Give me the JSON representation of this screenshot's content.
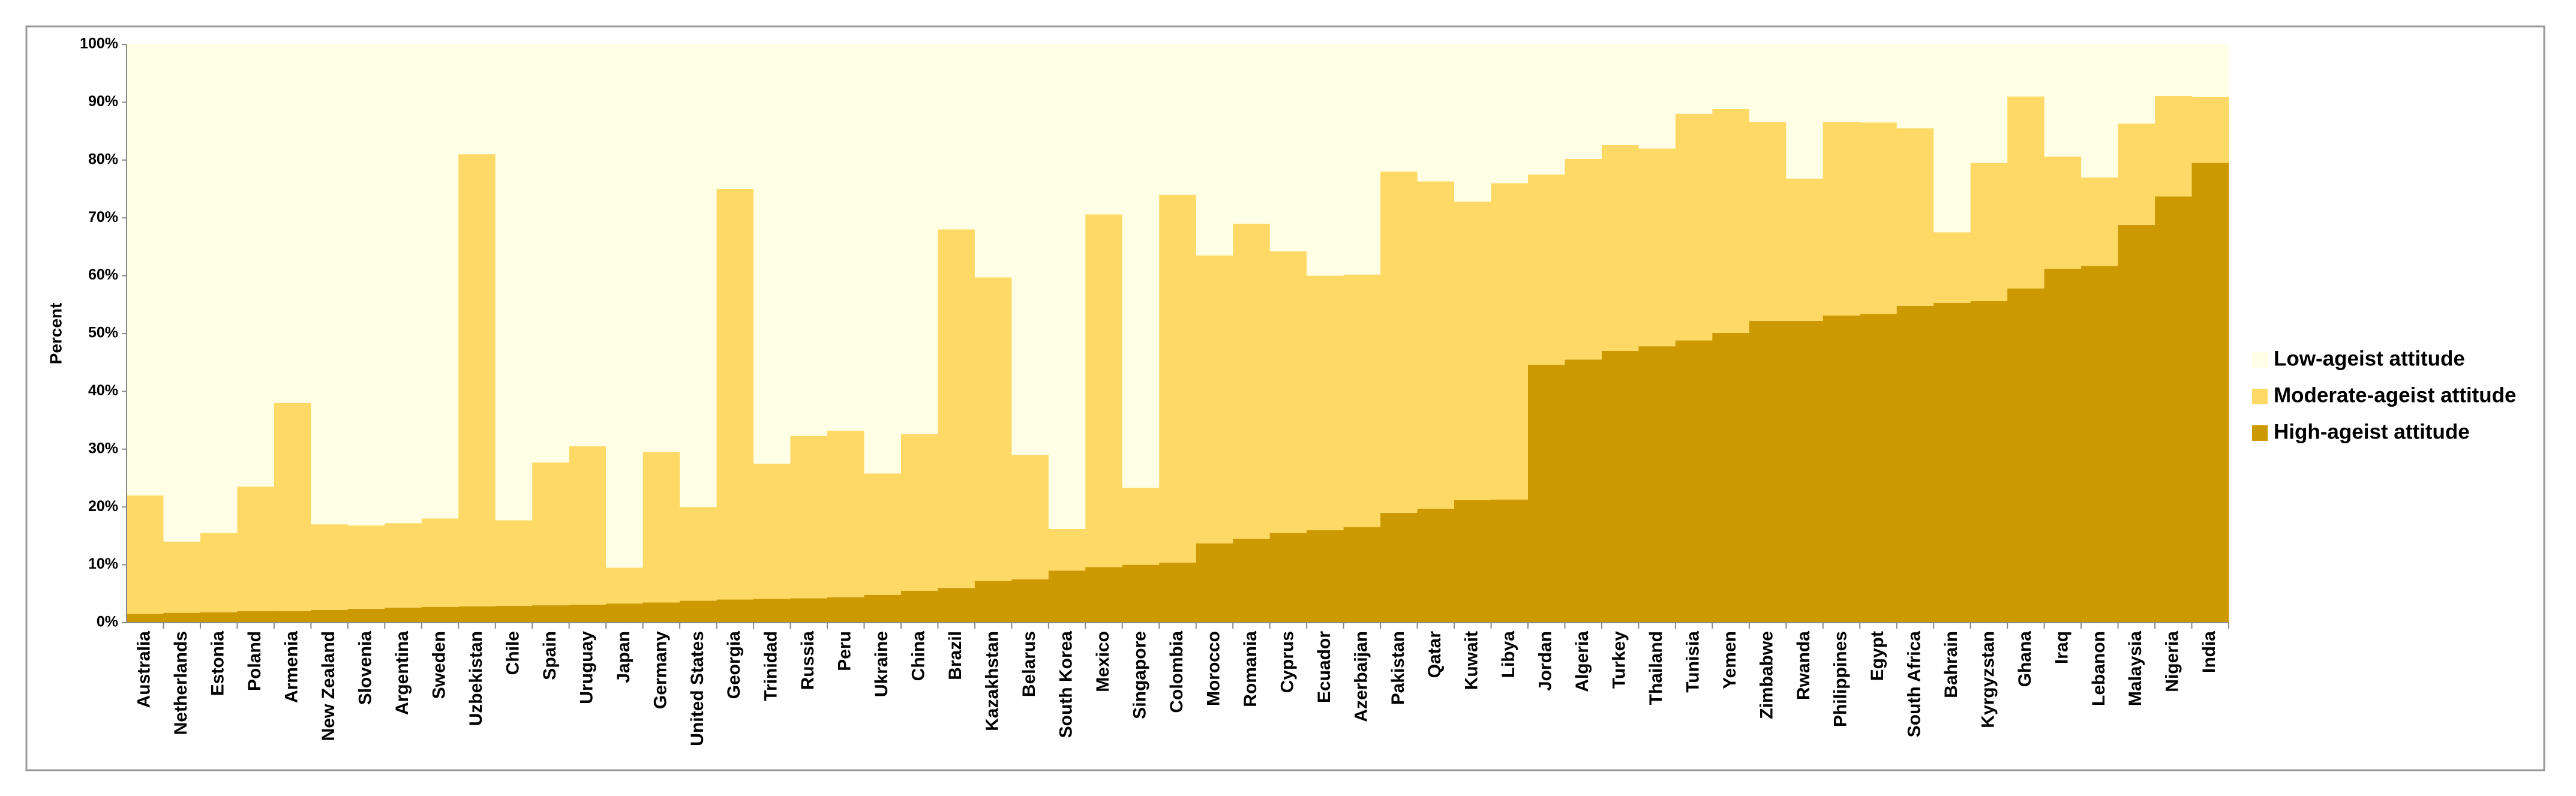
{
  "chart_data": {
    "type": "stacked_bar",
    "categories": [
      "Australia",
      "Netherlands",
      "Estonia",
      "Poland",
      "Armenia",
      "New Zealand",
      "Slovenia",
      "Argentina",
      "Sweden",
      "Uzbekistan",
      "Chile",
      "Spain",
      "Uruguay",
      "Japan",
      "Germany",
      "United States",
      "Georgia",
      "Trinidad",
      "Russia",
      "Peru",
      "Ukraine",
      "China",
      "Brazil",
      "Kazakhstan",
      "Belarus",
      "South Korea",
      "Mexico",
      "Singapore",
      "Colombia",
      "Morocco",
      "Romania",
      "Cyprus",
      "Ecuador",
      "Azerbaijan",
      "Pakistan",
      "Qatar",
      "Kuwait",
      "Libya",
      "Jordan",
      "Algeria",
      "Turkey",
      "Thailand",
      "Tunisia",
      "Yemen",
      "Zimbabwe",
      "Rwanda",
      "Philippines",
      "Egypt",
      "South Africa",
      "Bahrain",
      "Kyrgyzstan",
      "Ghana",
      "Iraq",
      "Lebanon",
      "Malaysia",
      "Nigeria",
      "India"
    ],
    "series": [
      {
        "name": "High-ageist attitude",
        "color": "#cc9900",
        "values": [
          1.5,
          1.7,
          1.8,
          2,
          2,
          2.2,
          2.4,
          2.6,
          2.7,
          2.8,
          2.9,
          3,
          3.1,
          3.3,
          3.5,
          3.8,
          4,
          4.1,
          4.2,
          4.4,
          4.8,
          5.5,
          6,
          7.2,
          7.5,
          9,
          9.6,
          10,
          10.4,
          13.7,
          14.5,
          15.5,
          16,
          16.5,
          19,
          19.7,
          21.2,
          21.3,
          44.6,
          45.5,
          47,
          47.8,
          48.8,
          50.1,
          52.2,
          52.2,
          53.1,
          53.4,
          54.8,
          55.3,
          55.6,
          57.8,
          61.2,
          61.7,
          68.8,
          73.7,
          79.5
        ]
      },
      {
        "name": "Moderate-ageist attitude",
        "color": "#ffd966",
        "values": [
          20.5,
          12.3,
          13.7,
          21.5,
          36,
          14.8,
          14.4,
          14.6,
          15.3,
          78.2,
          14.8,
          24.7,
          27.4,
          6.2,
          26,
          16.2,
          71,
          23.4,
          28.1,
          28.8,
          21,
          27.1,
          62,
          52.5,
          21.5,
          7.2,
          61,
          13.3,
          63.6,
          49.8,
          54.5,
          48.7,
          44,
          43.7,
          59,
          56.6,
          51.6,
          54.7,
          32.9,
          34.7,
          35.6,
          34.2,
          39.2,
          38.7,
          34.4,
          24.6,
          33.5,
          33.1,
          30.7,
          12.2,
          23.9,
          33.2,
          19.4,
          15.3,
          17.5,
          17.4,
          11.4
        ]
      },
      {
        "name": "Low-ageist attitude",
        "color": "#ffffe5",
        "values": [
          78,
          86,
          84.5,
          76.5,
          62,
          83,
          83.2,
          82.8,
          82,
          19,
          82.3,
          72.3,
          69.5,
          90.5,
          70.5,
          80,
          25,
          72.5,
          67.7,
          66.8,
          74.2,
          67.4,
          32,
          40.3,
          71,
          83.8,
          29.4,
          76.7,
          26,
          36.5,
          31,
          35.8,
          40,
          39.8,
          22,
          23.7,
          27.2,
          24,
          22.5,
          19.8,
          17.4,
          18,
          12,
          11.2,
          13.4,
          23.2,
          13.4,
          13.5,
          14.5,
          32.5,
          20.5,
          9,
          19.4,
          23,
          13.7,
          8.9,
          9.1
        ]
      }
    ],
    "y_label": "Percent",
    "ylim": [
      0,
      100
    ],
    "yticks": [
      {
        "value": 0,
        "label": "0%"
      },
      {
        "value": 10,
        "label": "10%"
      },
      {
        "value": 20,
        "label": "20%"
      },
      {
        "value": 30,
        "label": "30%"
      },
      {
        "value": 40,
        "label": "40%"
      },
      {
        "value": 50,
        "label": "50%"
      },
      {
        "value": 60,
        "label": "60%"
      },
      {
        "value": 70,
        "label": "70%"
      },
      {
        "value": 80,
        "label": "80%"
      },
      {
        "value": 90,
        "label": "90%"
      },
      {
        "value": 100,
        "label": "100%"
      }
    ],
    "legend": "right"
  }
}
